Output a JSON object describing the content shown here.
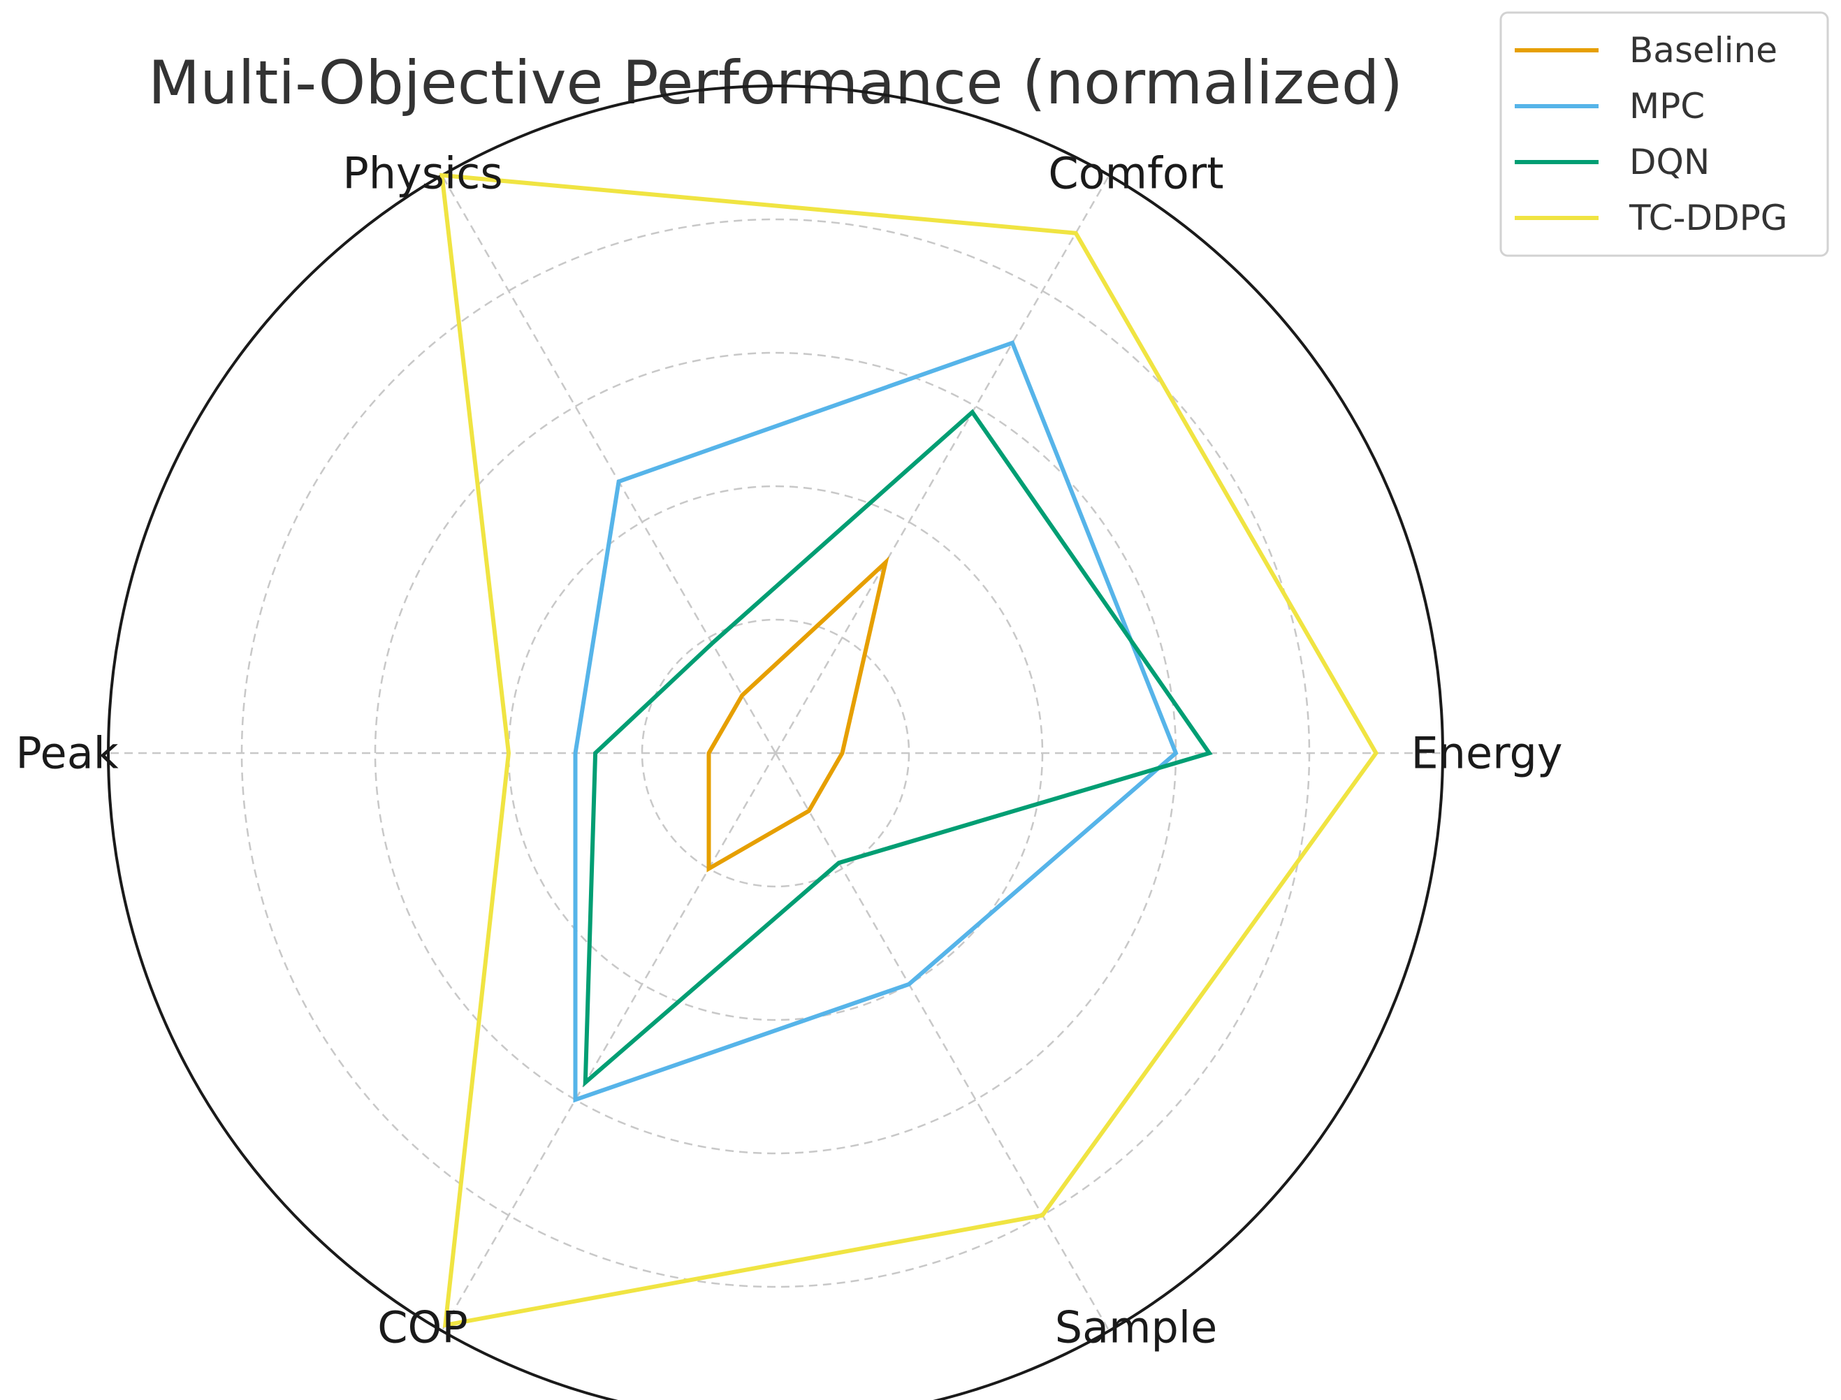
{
  "chart_data": {
    "type": "radar",
    "title": "Multi-Objective Performance (normalized)",
    "axes": [
      "Energy",
      "Comfort",
      "Physics",
      "Peak",
      "COP",
      "Sample"
    ],
    "rmax": 1.0,
    "grid_levels": [
      0.2,
      0.4,
      0.6,
      0.8
    ],
    "grid": true,
    "legend_position": "top-right",
    "series": [
      {
        "name": "Baseline",
        "color": "#E69F00",
        "values": [
          0.1,
          0.33,
          0.1,
          0.1,
          0.2,
          0.1
        ]
      },
      {
        "name": "MPC",
        "color": "#56B4E9",
        "values": [
          0.6,
          0.71,
          0.47,
          0.3,
          0.6,
          0.4
        ]
      },
      {
        "name": "DQN",
        "color": "#009E73",
        "values": [
          0.65,
          0.59,
          0.19,
          0.27,
          0.57,
          0.19
        ]
      },
      {
        "name": "TC-DDPG",
        "color": "#F0E442",
        "values": [
          0.9,
          0.9,
          1.0,
          0.4,
          0.99,
          0.8
        ]
      }
    ]
  }
}
